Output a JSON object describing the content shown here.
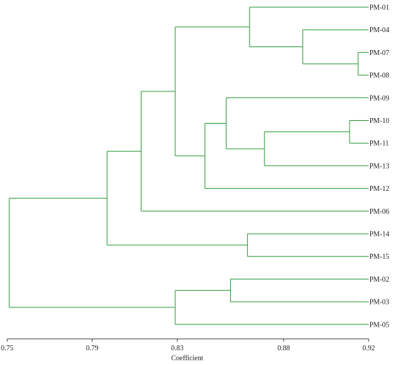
{
  "chart_data": {
    "type": "dendrogram",
    "xlabel": "Coefficient",
    "xlim": [
      0.75,
      0.92
    ],
    "ticks": [
      "0.75",
      "0.79",
      "0.83",
      "0.88",
      "0.92"
    ],
    "tick_values": [
      0.75,
      0.79,
      0.83,
      0.88,
      0.92
    ],
    "leaves": [
      "PM-01",
      "PM-04",
      "PM-07",
      "PM-08",
      "PM-09",
      "PM-10",
      "PM-11",
      "PM-13",
      "PM-12",
      "PM-06",
      "PM-14",
      "PM-15",
      "PM-02",
      "PM-03",
      "PM-05"
    ],
    "merges": [
      {
        "id": "n1",
        "children": [
          "PM-07",
          "PM-08"
        ],
        "height": 0.915
      },
      {
        "id": "n2",
        "children": [
          "PM-10",
          "PM-11"
        ],
        "height": 0.911
      },
      {
        "id": "n3",
        "children": [
          "PM-04",
          "n1"
        ],
        "height": 0.889
      },
      {
        "id": "n4",
        "children": [
          "n2",
          "PM-13"
        ],
        "height": 0.871
      },
      {
        "id": "n5",
        "children": [
          "PM-01",
          "n3"
        ],
        "height": 0.864
      },
      {
        "id": "n6",
        "children": [
          "PM-14",
          "PM-15"
        ],
        "height": 0.863
      },
      {
        "id": "n7",
        "children": [
          "PM-02",
          "PM-03"
        ],
        "height": 0.855
      },
      {
        "id": "n8",
        "children": [
          "PM-09",
          "n4"
        ],
        "height": 0.853
      },
      {
        "id": "n9",
        "children": [
          "n8",
          "PM-12"
        ],
        "height": 0.843
      },
      {
        "id": "n10",
        "children": [
          "n5",
          "n9"
        ],
        "height": 0.829
      },
      {
        "id": "n11",
        "children": [
          "n7",
          "PM-05"
        ],
        "height": 0.829
      },
      {
        "id": "n12",
        "children": [
          "n10",
          "PM-06"
        ],
        "height": 0.813
      },
      {
        "id": "n13",
        "children": [
          "n12",
          "n6"
        ],
        "height": 0.797
      },
      {
        "id": "n14",
        "children": [
          "n13",
          "n11"
        ],
        "height": 0.751
      }
    ],
    "line_color": "#2e9a3a"
  }
}
